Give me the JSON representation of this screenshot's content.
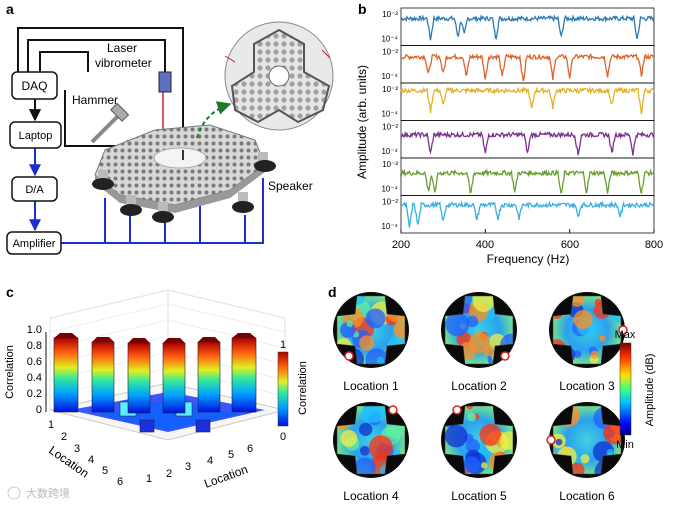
{
  "panels": {
    "a": "a",
    "b": "b",
    "c": "c",
    "d": "d"
  },
  "setup": {
    "daq": "DAQ",
    "laptop": "Laptop",
    "da": "D/A",
    "amplifier": "Amplifier",
    "hammer": "Hammer",
    "laser_line1": "Laser",
    "laser_line2": "vibrometer",
    "speaker": "Speaker"
  },
  "chart_data": [
    {
      "type": "line",
      "panel": "b",
      "xlabel": "Frequency (Hz)",
      "ylabel": "Amplitude (arb. units)",
      "xlim": [
        200,
        800
      ],
      "xticks": [
        "200",
        "400",
        "600",
        "800"
      ],
      "ytick_top": "10⁻²",
      "ytick_bottom": "10⁻⁴",
      "series": [
        {
          "name": "Location 1",
          "color": "#2a7ab5",
          "baseline": 0.72,
          "dips": [
            [
              270,
              0.55
            ],
            [
              335,
              0.5
            ],
            [
              350,
              0.45
            ],
            [
              425,
              0.55
            ],
            [
              580,
              0.5
            ],
            [
              760,
              0.55
            ]
          ]
        },
        {
          "name": "Location 2",
          "color": "#e0622a",
          "baseline": 0.7,
          "dips": [
            [
              265,
              0.5
            ],
            [
              300,
              0.45
            ],
            [
              355,
              0.55
            ],
            [
              400,
              0.6
            ],
            [
              440,
              0.55
            ],
            [
              490,
              0.7
            ],
            [
              560,
              0.6
            ],
            [
              600,
              0.55
            ],
            [
              690,
              0.5
            ],
            [
              770,
              0.5
            ]
          ]
        },
        {
          "name": "Location 3",
          "color": "#e3b22b",
          "baseline": 0.8,
          "dips": [
            [
              270,
              0.55
            ],
            [
              300,
              0.4
            ],
            [
              510,
              0.5
            ],
            [
              560,
              0.45
            ],
            [
              700,
              0.4
            ],
            [
              770,
              0.6
            ]
          ]
        },
        {
          "name": "Location 4",
          "color": "#7a3190",
          "baseline": 0.62,
          "dips": [
            [
              270,
              0.5
            ],
            [
              400,
              0.5
            ],
            [
              500,
              0.5
            ],
            [
              620,
              0.55
            ],
            [
              700,
              0.5
            ],
            [
              750,
              0.5
            ]
          ]
        },
        {
          "name": "Location 5",
          "color": "#6a9e2f",
          "baseline": 0.6,
          "dips": [
            [
              265,
              0.5
            ],
            [
              280,
              0.55
            ],
            [
              365,
              0.6
            ],
            [
              470,
              0.5
            ],
            [
              580,
              0.6
            ],
            [
              640,
              0.5
            ],
            [
              690,
              0.55
            ],
            [
              770,
              0.55
            ]
          ]
        },
        {
          "name": "Location 6",
          "color": "#3aaedf",
          "baseline": 0.75,
          "dips": [
            [
              220,
              0.6
            ],
            [
              240,
              0.55
            ],
            [
              300,
              0.45
            ],
            [
              380,
              0.4
            ],
            [
              430,
              0.35
            ],
            [
              480,
              0.35
            ],
            [
              620,
              0.3
            ],
            [
              720,
              0.3
            ]
          ]
        }
      ]
    },
    {
      "type": "bar3d",
      "panel": "c",
      "title": "",
      "xlabel": "Location",
      "ylabel": "Location",
      "zlabel": "Correlation",
      "zticks": [
        "0",
        "0.2",
        "0.4",
        "0.6",
        "0.8",
        "1.0"
      ],
      "loc_ticks": [
        "1",
        "2",
        "3",
        "4",
        "5",
        "6"
      ],
      "diagonal": [
        1,
        1,
        1,
        1,
        1,
        1
      ],
      "offdiag_typical": 0.12,
      "offdiag_max": 0.22,
      "colorbar": {
        "title": "Correlation",
        "max": "1",
        "min": "0"
      }
    }
  ],
  "maps": {
    "label_prefix": "Location",
    "items": [
      {
        "label": "Location 1",
        "marker": "bottom-left"
      },
      {
        "label": "Location 2",
        "marker": "bottom-right"
      },
      {
        "label": "Location 3",
        "marker": "right"
      },
      {
        "label": "Location 4",
        "marker": "top-right"
      },
      {
        "label": "Location 5",
        "marker": "top-left"
      },
      {
        "label": "Location 6",
        "marker": "left"
      }
    ],
    "colorbar": {
      "max": "Max",
      "min": "Min",
      "title": "Amplitude (dB)"
    }
  },
  "watermark": "大数跨境"
}
